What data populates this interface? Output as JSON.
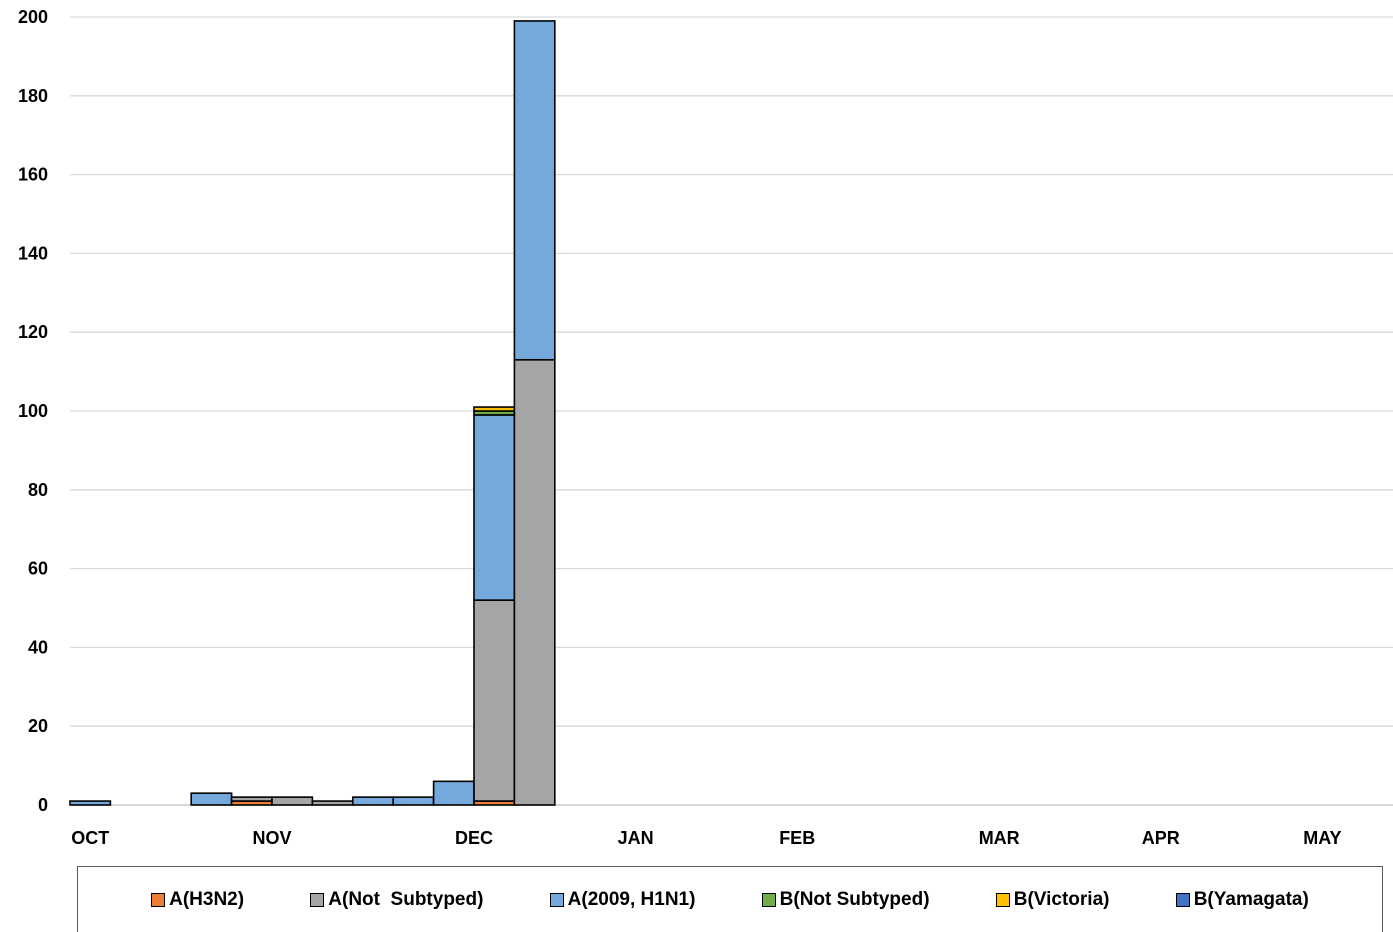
{
  "chart_data": {
    "type": "bar",
    "stacked": true,
    "title": "",
    "xlabel": "",
    "ylabel": "",
    "ylim": [
      0,
      200
    ],
    "yticks": [
      0,
      20,
      40,
      60,
      80,
      100,
      120,
      140,
      160,
      180,
      200
    ],
    "grid": true,
    "legend_position": "bottom",
    "month_labels": [
      {
        "label": "OCT",
        "week": 0
      },
      {
        "label": "NOV",
        "week": 4.5
      },
      {
        "label": "DEC",
        "week": 9.5
      },
      {
        "label": "JAN",
        "week": 13.5
      },
      {
        "label": "FEB",
        "week": 17.5
      },
      {
        "label": "MAR",
        "week": 22.5
      },
      {
        "label": "APR",
        "week": 26.5
      },
      {
        "label": "MAY",
        "week": 30.5
      }
    ],
    "weeks": 32,
    "series": [
      {
        "name": "A(H3N2)",
        "color": "#ED7D31",
        "values": [
          0,
          0,
          0,
          0,
          1,
          0,
          0,
          0,
          0,
          0,
          1,
          0
        ]
      },
      {
        "name": "A(Not  Subtyped)",
        "color": "#A5A5A5",
        "values": [
          0,
          0,
          0,
          0,
          1,
          2,
          1,
          0,
          0,
          0,
          51,
          113
        ]
      },
      {
        "name": "A(2009, H1N1)",
        "color": "#75A9DB",
        "values": [
          1,
          0,
          0,
          3,
          0,
          0,
          0,
          2,
          2,
          6,
          47,
          86
        ]
      },
      {
        "name": "B(Not Subtyped)",
        "color": "#70AD47",
        "values": [
          0,
          0,
          0,
          0,
          0,
          0,
          0,
          0,
          0,
          0,
          1,
          0
        ]
      },
      {
        "name": "B(Victoria)",
        "color": "#FFC000",
        "values": [
          0,
          0,
          0,
          0,
          0,
          0,
          0,
          0,
          0,
          0,
          1,
          0
        ]
      },
      {
        "name": "B(Yamagata)",
        "color": "#4472C4",
        "values": [
          0,
          0,
          0,
          0,
          0,
          0,
          0,
          0,
          0,
          0,
          0,
          0
        ]
      }
    ]
  }
}
